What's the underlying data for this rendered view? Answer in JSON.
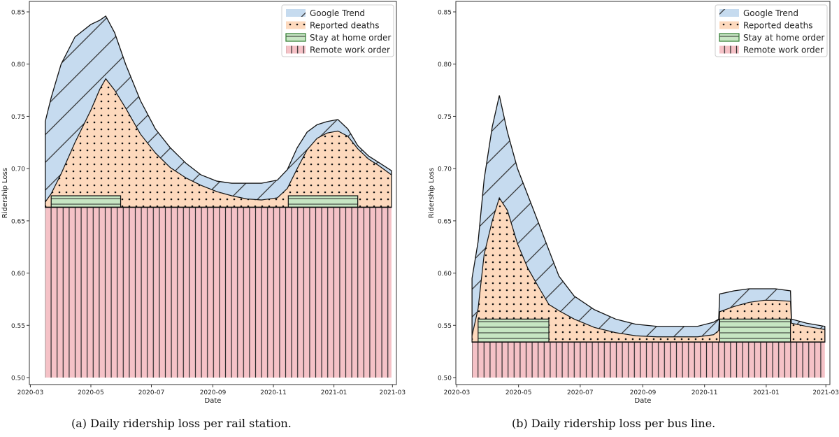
{
  "colors": {
    "google": "#c6dbef",
    "deaths": "#fdd9bd",
    "stay": "#c7e6c3",
    "remote": "#f5c2c7",
    "edge": "#111111"
  },
  "chart_data": [
    {
      "type": "area",
      "caption": "(a) Daily ridership loss per rail station.",
      "xlabel": "Date",
      "ylabel": "Ridership Loss",
      "ylim": [
        0.5,
        0.85
      ],
      "yticks": [
        "0.50",
        "0.55",
        "0.60",
        "0.65",
        "0.70",
        "0.75",
        "0.80",
        "0.85"
      ],
      "xticks": [
        "2020-03",
        "2020-05",
        "2020-07",
        "2020-09",
        "2020-11",
        "2021-01",
        "2021-03"
      ],
      "xlim": [
        "2020-02-29",
        "2021-03-05"
      ],
      "grid": false,
      "legend": {
        "position": "top-right",
        "entries": [
          "Google Trend",
          "Reported deaths",
          "Stay at home order",
          "Remote work order"
        ]
      },
      "remote_work_order": {
        "start": "2020-03-16",
        "end": "2021-02-28",
        "value": 0.663
      },
      "stay_at_home_order": [
        {
          "start": "2020-03-22",
          "end": "2020-05-31",
          "value": 0.674
        },
        {
          "start": "2020-11-16",
          "end": "2021-01-25",
          "value": 0.674
        }
      ],
      "reported_deaths": {
        "x": [
          "2020-03-16",
          "2020-03-22",
          "2020-04-01",
          "2020-04-15",
          "2020-05-01",
          "2020-05-10",
          "2020-05-16",
          "2020-05-25",
          "2020-06-05",
          "2020-06-20",
          "2020-07-05",
          "2020-07-20",
          "2020-08-05",
          "2020-08-20",
          "2020-09-05",
          "2020-09-20",
          "2020-10-05",
          "2020-10-20",
          "2020-11-05",
          "2020-11-15",
          "2020-11-25",
          "2020-12-05",
          "2020-12-15",
          "2020-12-25",
          "2021-01-05",
          "2021-01-15",
          "2021-01-25",
          "2021-02-05",
          "2021-02-15",
          "2021-02-28"
        ],
        "values": [
          0.668,
          0.676,
          0.695,
          0.725,
          0.756,
          0.776,
          0.786,
          0.775,
          0.758,
          0.733,
          0.715,
          0.701,
          0.691,
          0.684,
          0.678,
          0.674,
          0.671,
          0.67,
          0.672,
          0.681,
          0.7,
          0.718,
          0.729,
          0.734,
          0.736,
          0.731,
          0.719,
          0.709,
          0.703,
          0.694
        ]
      },
      "google_trend": {
        "x": [
          "2020-03-16",
          "2020-03-22",
          "2020-04-01",
          "2020-04-15",
          "2020-05-01",
          "2020-05-10",
          "2020-05-16",
          "2020-05-25",
          "2020-06-05",
          "2020-06-20",
          "2020-07-05",
          "2020-07-20",
          "2020-08-05",
          "2020-08-20",
          "2020-09-05",
          "2020-09-20",
          "2020-10-05",
          "2020-10-20",
          "2020-11-05",
          "2020-11-15",
          "2020-11-25",
          "2020-12-05",
          "2020-12-15",
          "2020-12-25",
          "2021-01-05",
          "2021-01-15",
          "2021-01-25",
          "2021-02-05",
          "2021-02-15",
          "2021-02-28"
        ],
        "values": [
          0.745,
          0.768,
          0.8,
          0.826,
          0.838,
          0.842,
          0.846,
          0.83,
          0.8,
          0.765,
          0.738,
          0.72,
          0.705,
          0.694,
          0.688,
          0.686,
          0.686,
          0.686,
          0.689,
          0.699,
          0.72,
          0.735,
          0.742,
          0.745,
          0.747,
          0.738,
          0.722,
          0.712,
          0.706,
          0.698
        ]
      }
    },
    {
      "type": "area",
      "caption": "(b) Daily ridership loss per bus line.",
      "xlabel": "Date",
      "ylabel": "Ridership Loss",
      "ylim": [
        0.5,
        0.85
      ],
      "yticks": [
        "0.50",
        "0.55",
        "0.60",
        "0.65",
        "0.70",
        "0.75",
        "0.80",
        "0.85"
      ],
      "xticks": [
        "2020-03",
        "2020-05",
        "2020-07",
        "2020-09",
        "2020-11",
        "2021-01",
        "2021-03"
      ],
      "xlim": [
        "2020-02-29",
        "2021-03-05"
      ],
      "grid": false,
      "legend": {
        "position": "top-right",
        "entries": [
          "Google Trend",
          "Reported deaths",
          "Stay at home order",
          "Remote work order"
        ]
      },
      "remote_work_order": {
        "start": "2020-03-16",
        "end": "2021-02-28",
        "value": 0.534
      },
      "stay_at_home_order": [
        {
          "start": "2020-03-22",
          "end": "2020-05-31",
          "value": 0.556
        },
        {
          "start": "2020-11-16",
          "end": "2021-01-25",
          "value": 0.556
        }
      ],
      "reported_deaths": {
        "x": [
          "2020-03-16",
          "2020-03-22",
          "2020-03-28",
          "2020-04-05",
          "2020-04-12",
          "2020-04-20",
          "2020-04-30",
          "2020-05-10",
          "2020-05-20",
          "2020-05-31",
          "2020-06-10",
          "2020-06-25",
          "2020-07-15",
          "2020-08-05",
          "2020-08-25",
          "2020-09-15",
          "2020-10-05",
          "2020-10-25",
          "2020-11-10",
          "2020-11-15",
          "2020-11-16",
          "2020-11-30",
          "2020-12-15",
          "2020-12-30",
          "2021-01-10",
          "2021-01-25",
          "2021-01-26",
          "2021-02-10",
          "2021-02-28"
        ],
        "values": [
          0.54,
          0.566,
          0.618,
          0.65,
          0.672,
          0.66,
          0.628,
          0.605,
          0.588,
          0.57,
          0.564,
          0.556,
          0.548,
          0.543,
          0.54,
          0.539,
          0.539,
          0.539,
          0.541,
          0.545,
          0.563,
          0.568,
          0.572,
          0.574,
          0.574,
          0.573,
          0.552,
          0.549,
          0.546
        ]
      },
      "google_trend": {
        "x": [
          "2020-03-16",
          "2020-03-22",
          "2020-03-28",
          "2020-04-05",
          "2020-04-12",
          "2020-04-20",
          "2020-04-30",
          "2020-05-10",
          "2020-05-20",
          "2020-05-31",
          "2020-06-10",
          "2020-06-25",
          "2020-07-15",
          "2020-08-05",
          "2020-08-25",
          "2020-09-15",
          "2020-10-05",
          "2020-10-25",
          "2020-11-10",
          "2020-11-15",
          "2020-11-16",
          "2020-11-30",
          "2020-12-15",
          "2020-12-30",
          "2021-01-10",
          "2021-01-25",
          "2021-01-26",
          "2021-02-10",
          "2021-02-28"
        ],
        "values": [
          0.595,
          0.63,
          0.69,
          0.74,
          0.77,
          0.735,
          0.7,
          0.675,
          0.65,
          0.622,
          0.597,
          0.578,
          0.565,
          0.556,
          0.551,
          0.549,
          0.549,
          0.549,
          0.553,
          0.556,
          0.58,
          0.583,
          0.585,
          0.585,
          0.585,
          0.583,
          0.556,
          0.552,
          0.549
        ]
      }
    }
  ]
}
